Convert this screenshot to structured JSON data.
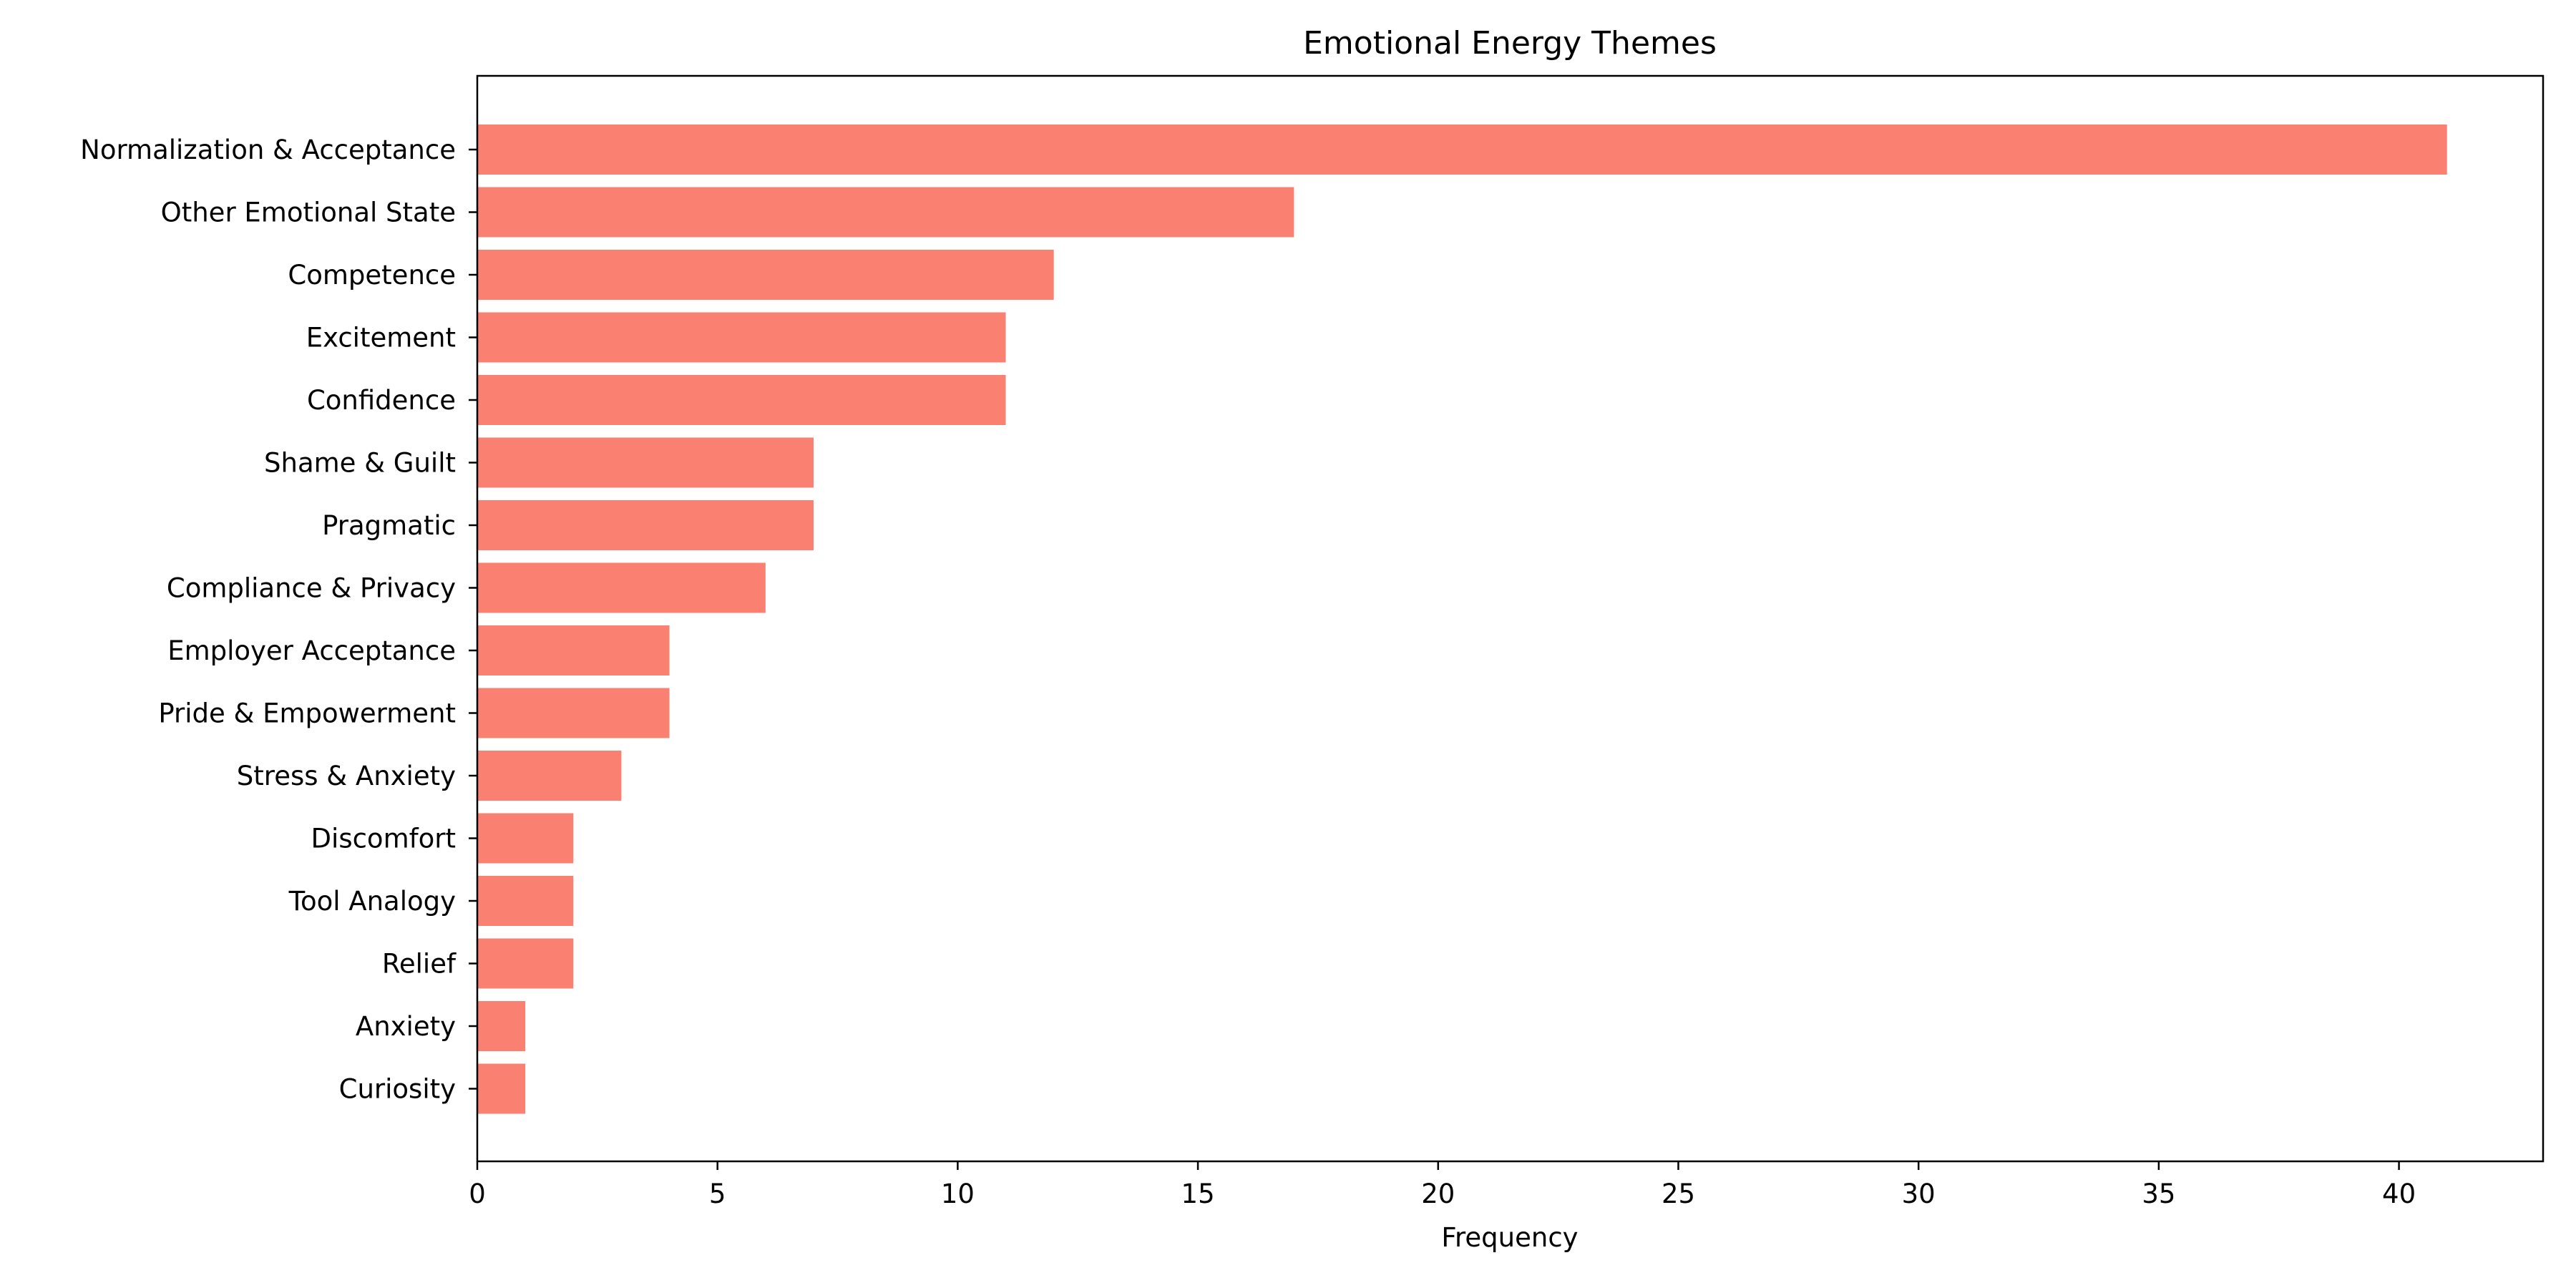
{
  "chart_data": {
    "type": "bar",
    "orientation": "horizontal",
    "title": "Emotional Energy Themes",
    "xlabel": "Frequency",
    "ylabel": "",
    "categories": [
      "Normalization & Acceptance",
      "Other Emotional State",
      "Competence",
      "Excitement",
      "Confidence",
      "Shame & Guilt",
      "Pragmatic",
      "Compliance & Privacy",
      "Employer Acceptance",
      "Pride & Empowerment",
      "Stress & Anxiety",
      "Discomfort",
      "Tool Analogy",
      "Relief",
      "Anxiety",
      "Curiosity"
    ],
    "values": [
      41,
      17,
      12,
      11,
      11,
      7,
      7,
      6,
      4,
      4,
      3,
      2,
      2,
      2,
      1,
      1
    ],
    "xlim": [
      0,
      43
    ],
    "xticks": [
      0,
      5,
      10,
      15,
      20,
      25,
      30,
      35,
      40
    ],
    "grid": false,
    "bar_color": "#fa8072"
  }
}
